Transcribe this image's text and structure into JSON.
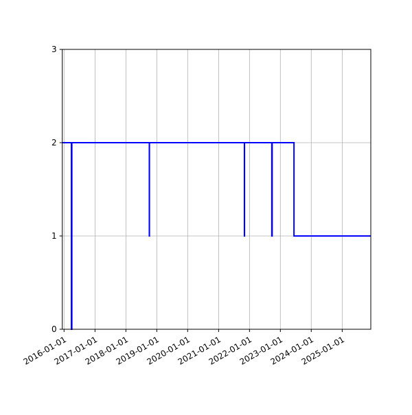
{
  "chart_data": {
    "type": "line",
    "step": "post",
    "title": "",
    "xlabel": "",
    "ylabel": "",
    "x_axis_type": "date",
    "xlim": [
      "2015-12-11",
      "2025-12-05"
    ],
    "ylim": [
      0,
      3
    ],
    "grid": true,
    "legend": "none",
    "xticks": [
      "2016-01-01",
      "2017-01-01",
      "2018-01-01",
      "2019-01-01",
      "2020-01-01",
      "2021-01-01",
      "2022-01-01",
      "2023-01-01",
      "2024-01-01",
      "2025-01-01"
    ],
    "yticks": [
      "0",
      "1",
      "2",
      "3"
    ],
    "series": [
      {
        "color": "#0000ff",
        "points": [
          [
            "2015-12-11",
            2
          ],
          [
            "2016-03-28",
            0
          ],
          [
            "2016-04-02",
            2
          ],
          [
            "2018-10-05",
            1
          ],
          [
            "2018-10-06",
            2
          ],
          [
            "2021-11-02",
            1
          ],
          [
            "2021-11-03",
            2
          ],
          [
            "2022-09-22",
            1
          ],
          [
            "2022-09-26",
            2
          ],
          [
            "2023-06-11",
            1
          ],
          [
            "2025-12-05",
            1
          ]
        ]
      }
    ]
  }
}
